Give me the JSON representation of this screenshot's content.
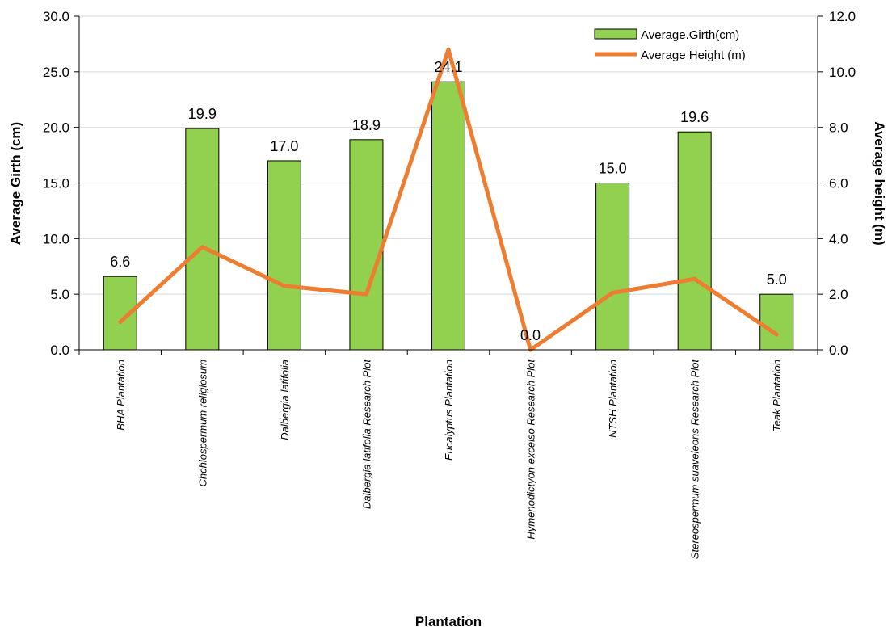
{
  "chart_data": {
    "type": "bar",
    "categories": [
      "BHA Plantation",
      "Chchlospermum religiosum",
      "Dalbergia latifolia",
      "Dalbergia latifolia Research Plot",
      "Eucalyptus Plantation",
      "Hymenodictyon excelso Research Plot",
      "NTSH Plantation",
      "Stereospermum suaveleons Research Plot",
      "Teak Plantation"
    ],
    "series": [
      {
        "name": "Average.Girth(cm)",
        "type": "bar",
        "axis": "left",
        "color": "#92d050",
        "values": [
          6.6,
          19.9,
          17.0,
          18.9,
          24.1,
          0.0,
          15.0,
          19.6,
          5.0
        ],
        "labels": [
          "6.6",
          "19.9",
          "17.0",
          "18.9",
          "24.1",
          "0.0",
          "15.0",
          "19.6",
          "5.0"
        ]
      },
      {
        "name": "Average Height (m)",
        "type": "line",
        "axis": "right",
        "color": "#ed7d31",
        "values": [
          1.0,
          3.7,
          2.3,
          2.0,
          10.8,
          0.0,
          2.05,
          2.55,
          0.55
        ]
      }
    ],
    "xlabel": "Plantation",
    "ylabel": "Average Girth (cm)",
    "y2label": "Average height  (m)",
    "ylim": [
      0,
      30
    ],
    "y2lim": [
      0,
      12
    ],
    "yticks": [
      "0.0",
      "5.0",
      "10.0",
      "15.0",
      "20.0",
      "25.0",
      "30.0"
    ],
    "y2ticks": [
      "0.0",
      "2.0",
      "4.0",
      "6.0",
      "8.0",
      "10.0",
      "12.0"
    ],
    "grid": true,
    "legend": "top-right"
  }
}
